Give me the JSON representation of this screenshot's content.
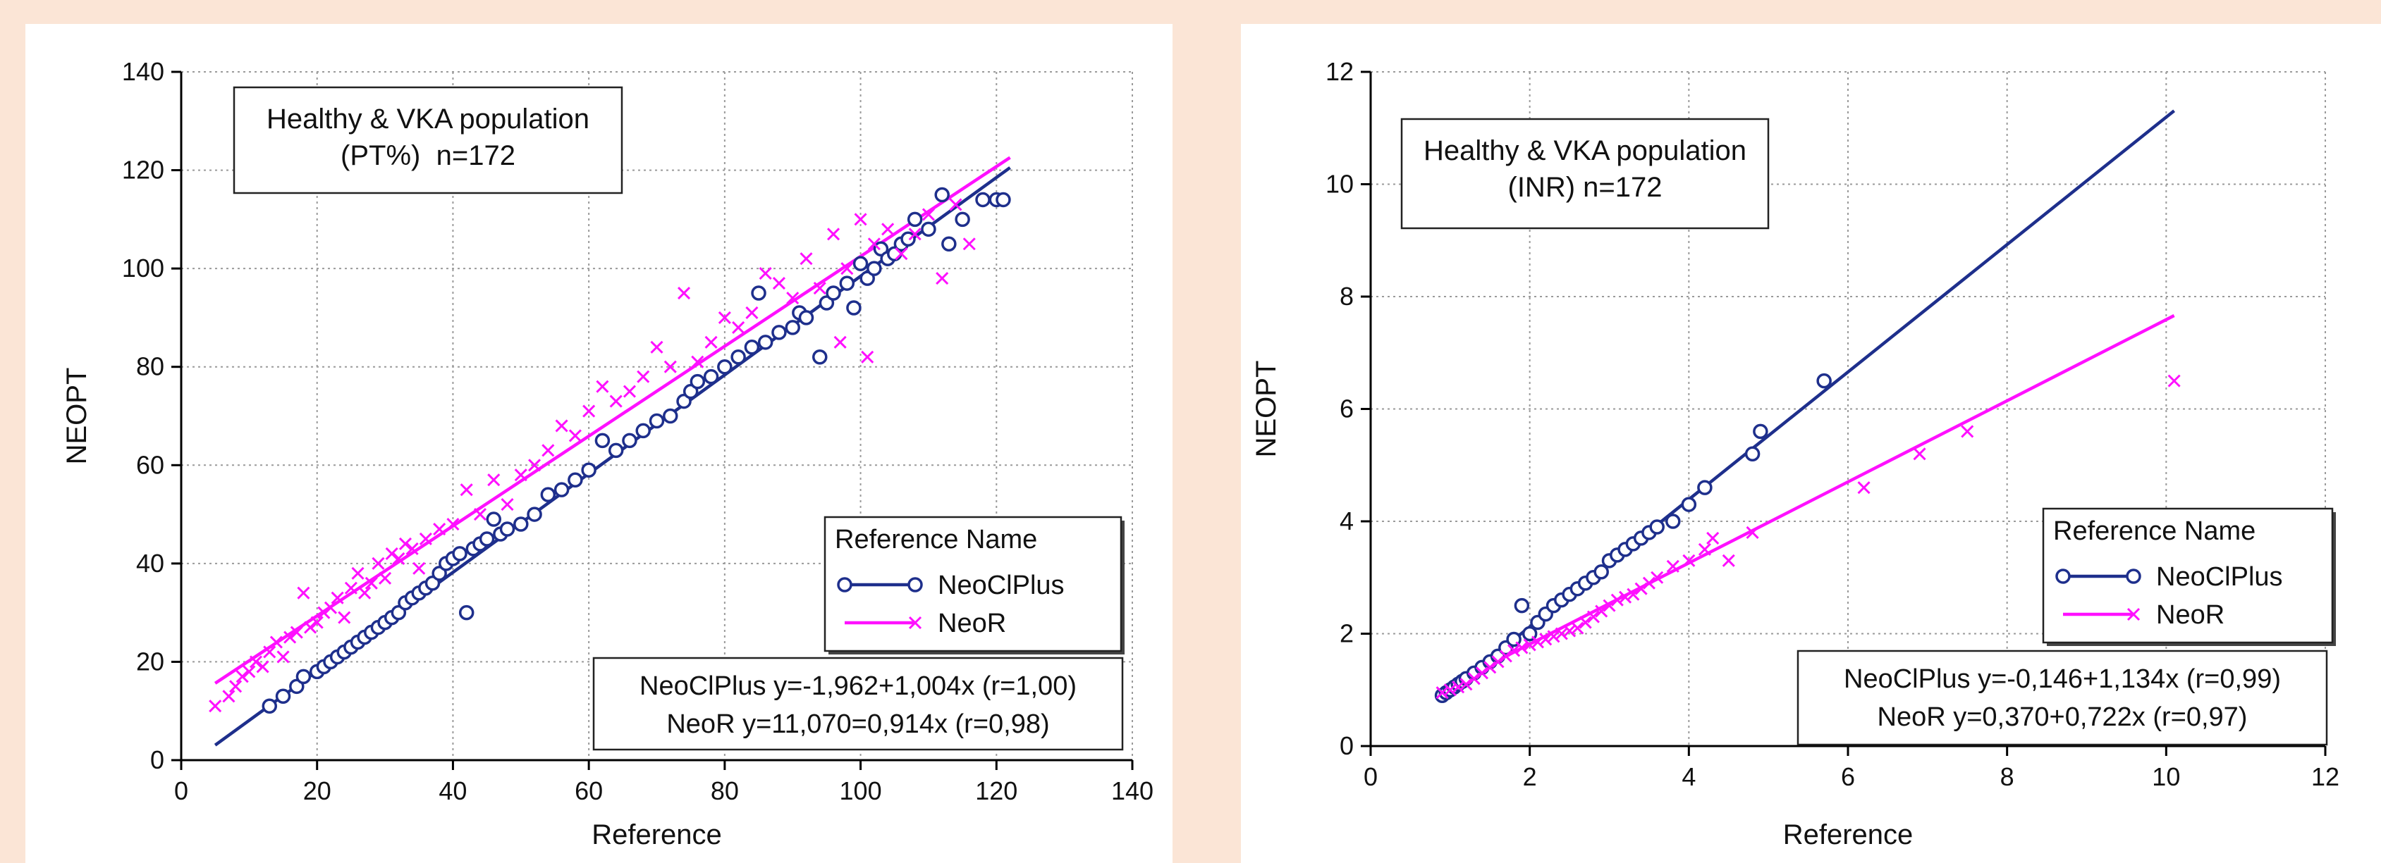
{
  "colors": {
    "page_background": "#fbe5d6",
    "panel_background": "#ffffff",
    "neoclplus": "#1e2f8c",
    "neor": "#ff10ff",
    "grid": "#9a9a9a"
  },
  "chart_data": [
    {
      "type": "scatter",
      "xlabel": "Reference",
      "ylabel": "NEOPT",
      "xlim": [
        0,
        140
      ],
      "ylim": [
        0,
        140
      ],
      "x_ticks": [
        0,
        20,
        40,
        60,
        80,
        100,
        120,
        140
      ],
      "y_ticks": [
        0,
        20,
        40,
        60,
        80,
        100,
        120,
        140
      ],
      "grid": true,
      "annotation_lines": [
        "Healthy & VKA population",
        "(PT%)  n=172"
      ],
      "legend": {
        "title": "Reference Name",
        "entries": [
          "NeoClPlus",
          "NeoR"
        ],
        "placement": "lower-right"
      },
      "equations": [
        "NeoClPlus y=-1,962+1,004x (r=1,00)",
        "NeoR y=11,070=0,914x (r=0,98)"
      ],
      "series": [
        {
          "name": "NeoClPlus",
          "marker": "circle",
          "fit": {
            "intercept": -1.962,
            "slope": 1.004,
            "x_range": [
              5,
              122
            ]
          },
          "points": [
            [
              13,
              11
            ],
            [
              15,
              13
            ],
            [
              17,
              15
            ],
            [
              18,
              17
            ],
            [
              20,
              18
            ],
            [
              21,
              19
            ],
            [
              22,
              20
            ],
            [
              23,
              21
            ],
            [
              24,
              22
            ],
            [
              25,
              23
            ],
            [
              26,
              24
            ],
            [
              27,
              25
            ],
            [
              28,
              26
            ],
            [
              29,
              27
            ],
            [
              30,
              28
            ],
            [
              31,
              29
            ],
            [
              32,
              30
            ],
            [
              33,
              32
            ],
            [
              34,
              33
            ],
            [
              35,
              34
            ],
            [
              36,
              35
            ],
            [
              37,
              36
            ],
            [
              38,
              38
            ],
            [
              39,
              40
            ],
            [
              40,
              41
            ],
            [
              41,
              42
            ],
            [
              42,
              30
            ],
            [
              43,
              43
            ],
            [
              44,
              44
            ],
            [
              45,
              45
            ],
            [
              46,
              49
            ],
            [
              47,
              46
            ],
            [
              48,
              47
            ],
            [
              50,
              48
            ],
            [
              52,
              50
            ],
            [
              54,
              54
            ],
            [
              56,
              55
            ],
            [
              58,
              57
            ],
            [
              60,
              59
            ],
            [
              62,
              65
            ],
            [
              64,
              63
            ],
            [
              66,
              65
            ],
            [
              68,
              67
            ],
            [
              70,
              69
            ],
            [
              72,
              70
            ],
            [
              74,
              73
            ],
            [
              75,
              75
            ],
            [
              76,
              77
            ],
            [
              78,
              78
            ],
            [
              80,
              80
            ],
            [
              82,
              82
            ],
            [
              84,
              84
            ],
            [
              85,
              95
            ],
            [
              86,
              85
            ],
            [
              88,
              87
            ],
            [
              90,
              88
            ],
            [
              91,
              91
            ],
            [
              92,
              90
            ],
            [
              94,
              82
            ],
            [
              95,
              93
            ],
            [
              96,
              95
            ],
            [
              98,
              97
            ],
            [
              99,
              92
            ],
            [
              100,
              101
            ],
            [
              101,
              98
            ],
            [
              102,
              100
            ],
            [
              103,
              104
            ],
            [
              104,
              102
            ],
            [
              105,
              103
            ],
            [
              106,
              105
            ],
            [
              107,
              106
            ],
            [
              108,
              110
            ],
            [
              110,
              108
            ],
            [
              112,
              115
            ],
            [
              113,
              105
            ],
            [
              115,
              110
            ],
            [
              118,
              114
            ],
            [
              120,
              114
            ],
            [
              121,
              114
            ]
          ]
        },
        {
          "name": "NeoR",
          "marker": "x",
          "fit": {
            "intercept": 11.07,
            "slope": 0.914,
            "x_range": [
              5,
              122
            ]
          },
          "points": [
            [
              5,
              11
            ],
            [
              7,
              13
            ],
            [
              8,
              15
            ],
            [
              9,
              17
            ],
            [
              10,
              18
            ],
            [
              11,
              20
            ],
            [
              12,
              19
            ],
            [
              13,
              22
            ],
            [
              14,
              24
            ],
            [
              15,
              21
            ],
            [
              16,
              25
            ],
            [
              17,
              26
            ],
            [
              18,
              34
            ],
            [
              19,
              27
            ],
            [
              20,
              28
            ],
            [
              21,
              30
            ],
            [
              22,
              31
            ],
            [
              23,
              33
            ],
            [
              24,
              29
            ],
            [
              25,
              35
            ],
            [
              26,
              38
            ],
            [
              27,
              34
            ],
            [
              28,
              36
            ],
            [
              29,
              40
            ],
            [
              30,
              37
            ],
            [
              31,
              42
            ],
            [
              32,
              41
            ],
            [
              33,
              44
            ],
            [
              34,
              43
            ],
            [
              35,
              39
            ],
            [
              36,
              45
            ],
            [
              38,
              47
            ],
            [
              40,
              48
            ],
            [
              42,
              55
            ],
            [
              44,
              50
            ],
            [
              46,
              57
            ],
            [
              48,
              52
            ],
            [
              50,
              58
            ],
            [
              52,
              60
            ],
            [
              54,
              63
            ],
            [
              56,
              68
            ],
            [
              58,
              66
            ],
            [
              60,
              71
            ],
            [
              62,
              76
            ],
            [
              64,
              73
            ],
            [
              66,
              75
            ],
            [
              68,
              78
            ],
            [
              70,
              84
            ],
            [
              72,
              80
            ],
            [
              74,
              95
            ],
            [
              76,
              81
            ],
            [
              78,
              85
            ],
            [
              80,
              90
            ],
            [
              82,
              88
            ],
            [
              84,
              91
            ],
            [
              86,
              99
            ],
            [
              88,
              97
            ],
            [
              90,
              94
            ],
            [
              92,
              102
            ],
            [
              94,
              96
            ],
            [
              96,
              107
            ],
            [
              97,
              85
            ],
            [
              98,
              100
            ],
            [
              100,
              110
            ],
            [
              101,
              82
            ],
            [
              102,
              105
            ],
            [
              104,
              108
            ],
            [
              106,
              103
            ],
            [
              108,
              107
            ],
            [
              110,
              111
            ],
            [
              112,
              98
            ],
            [
              114,
              113
            ],
            [
              116,
              105
            ]
          ]
        }
      ]
    },
    {
      "type": "scatter",
      "xlabel": "Reference",
      "ylabel": "NEOPT",
      "xlim": [
        0,
        12
      ],
      "ylim": [
        0,
        12
      ],
      "x_ticks": [
        0,
        2,
        4,
        6,
        8,
        10,
        12
      ],
      "y_ticks": [
        0,
        2,
        4,
        6,
        8,
        10,
        12
      ],
      "grid": true,
      "annotation_lines": [
        "Healthy & VKA population",
        "(INR) n=172"
      ],
      "legend": {
        "title": "Reference Name",
        "entries": [
          "NeoClPlus",
          "NeoR"
        ],
        "placement": "lower-right"
      },
      "equations": [
        "NeoClPlus y=-0,146+1,134x (r=0,99)",
        "NeoR y=0,370+0,722x (r=0,97)"
      ],
      "series": [
        {
          "name": "NeoClPlus",
          "marker": "circle",
          "fit": {
            "intercept": -0.146,
            "slope": 1.134,
            "x_range": [
              0.9,
              10.1
            ]
          },
          "points": [
            [
              0.9,
              0.9
            ],
            [
              0.95,
              0.95
            ],
            [
              1.0,
              1.0
            ],
            [
              1.05,
              1.05
            ],
            [
              1.1,
              1.1
            ],
            [
              1.15,
              1.15
            ],
            [
              1.2,
              1.2
            ],
            [
              1.3,
              1.3
            ],
            [
              1.4,
              1.4
            ],
            [
              1.5,
              1.5
            ],
            [
              1.6,
              1.6
            ],
            [
              1.7,
              1.75
            ],
            [
              1.8,
              1.9
            ],
            [
              1.9,
              2.5
            ],
            [
              2.0,
              2.0
            ],
            [
              2.1,
              2.2
            ],
            [
              2.2,
              2.35
            ],
            [
              2.3,
              2.5
            ],
            [
              2.4,
              2.6
            ],
            [
              2.5,
              2.7
            ],
            [
              2.6,
              2.8
            ],
            [
              2.7,
              2.9
            ],
            [
              2.8,
              3.0
            ],
            [
              2.9,
              3.1
            ],
            [
              3.0,
              3.3
            ],
            [
              3.1,
              3.4
            ],
            [
              3.2,
              3.5
            ],
            [
              3.3,
              3.6
            ],
            [
              3.4,
              3.7
            ],
            [
              3.5,
              3.8
            ],
            [
              3.6,
              3.9
            ],
            [
              3.8,
              4.0
            ],
            [
              4.0,
              4.3
            ],
            [
              4.2,
              4.6
            ],
            [
              4.8,
              5.2
            ],
            [
              4.9,
              5.6
            ],
            [
              5.7,
              6.5
            ]
          ]
        },
        {
          "name": "NeoR",
          "marker": "x",
          "fit": {
            "intercept": 0.37,
            "slope": 0.722,
            "x_range": [
              0.9,
              10.1
            ]
          },
          "points": [
            [
              0.9,
              0.95
            ],
            [
              1.0,
              1.0
            ],
            [
              1.1,
              1.05
            ],
            [
              1.2,
              1.1
            ],
            [
              1.3,
              1.2
            ],
            [
              1.4,
              1.3
            ],
            [
              1.5,
              1.4
            ],
            [
              1.6,
              1.5
            ],
            [
              1.7,
              1.6
            ],
            [
              1.8,
              1.7
            ],
            [
              1.9,
              1.75
            ],
            [
              2.0,
              1.8
            ],
            [
              2.1,
              1.85
            ],
            [
              2.2,
              1.9
            ],
            [
              2.3,
              1.95
            ],
            [
              2.4,
              2.0
            ],
            [
              2.5,
              2.05
            ],
            [
              2.6,
              2.1
            ],
            [
              2.7,
              2.2
            ],
            [
              2.8,
              2.3
            ],
            [
              2.9,
              2.4
            ],
            [
              3.0,
              2.5
            ],
            [
              3.1,
              2.6
            ],
            [
              3.2,
              2.65
            ],
            [
              3.3,
              2.7
            ],
            [
              3.4,
              2.8
            ],
            [
              3.5,
              2.9
            ],
            [
              3.6,
              3.0
            ],
            [
              3.8,
              3.2
            ],
            [
              4.0,
              3.3
            ],
            [
              4.2,
              3.5
            ],
            [
              4.3,
              3.7
            ],
            [
              4.5,
              3.3
            ],
            [
              4.8,
              3.8
            ],
            [
              6.2,
              4.6
            ],
            [
              6.9,
              5.2
            ],
            [
              7.5,
              5.6
            ],
            [
              10.1,
              6.5
            ]
          ]
        }
      ]
    }
  ]
}
